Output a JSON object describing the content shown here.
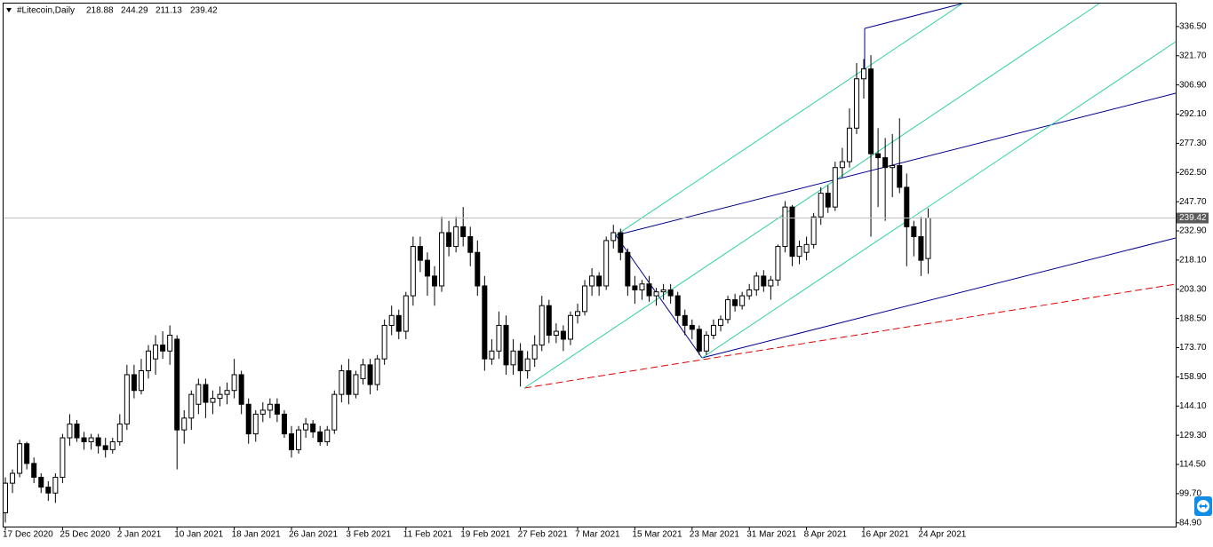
{
  "chart_data": {
    "type": "candlestick",
    "title": "#Litecoin,Daily",
    "categories": [
      "17 Dec 2020",
      null,
      null,
      null,
      null,
      null,
      null,
      null,
      "25 Dec 2020",
      null,
      null,
      null,
      null,
      null,
      null,
      null,
      "2 Jan 2021",
      null,
      null,
      null,
      null,
      null,
      null,
      null,
      "10 Jan 2021",
      null,
      null,
      null,
      null,
      null,
      null,
      null,
      "18 Jan 2021",
      null,
      null,
      null,
      null,
      null,
      null,
      null,
      "26 Jan 2021",
      null,
      null,
      null,
      null,
      null,
      null,
      null,
      "3 Feb 2021",
      null,
      null,
      null,
      null,
      null,
      null,
      null,
      "11 Feb 2021",
      null,
      null,
      null,
      null,
      null,
      null,
      null,
      "19 Feb 2021",
      null,
      null,
      null,
      null,
      null,
      null,
      null,
      "27 Feb 2021",
      null,
      null,
      null,
      null,
      null,
      null,
      null,
      "7 Mar 2021",
      null,
      null,
      null,
      null,
      null,
      null,
      null,
      "15 Mar 2021",
      null,
      null,
      null,
      null,
      null,
      null,
      null,
      "23 Mar 2021",
      null,
      null,
      null,
      null,
      null,
      null,
      null,
      "31 Mar 2021",
      null,
      null,
      null,
      null,
      null,
      null,
      null,
      "8 Apr 2021",
      null,
      null,
      null,
      null,
      null,
      null,
      null,
      "16 Apr 2021",
      null,
      null,
      null,
      null,
      null,
      null,
      null,
      "24 Apr 2021",
      null
    ],
    "ohlc": [
      [
        90,
        108,
        85,
        105
      ],
      [
        105,
        112,
        100,
        110
      ],
      [
        110,
        127,
        108,
        125
      ],
      [
        125,
        126,
        112,
        115
      ],
      [
        115,
        118,
        105,
        108
      ],
      [
        108,
        110,
        100,
        103
      ],
      [
        103,
        106,
        96,
        100
      ],
      [
        100,
        110,
        95,
        108
      ],
      [
        108,
        130,
        105,
        128
      ],
      [
        128,
        140,
        124,
        135
      ],
      [
        135,
        137,
        126,
        128
      ],
      [
        128,
        131,
        122,
        126
      ],
      [
        126,
        130,
        122,
        128
      ],
      [
        128,
        130,
        120,
        124
      ],
      [
        124,
        128,
        118,
        122
      ],
      [
        122,
        128,
        120,
        126
      ],
      [
        126,
        140,
        124,
        135
      ],
      [
        135,
        165,
        132,
        160
      ],
      [
        160,
        165,
        148,
        152
      ],
      [
        152,
        168,
        150,
        162
      ],
      [
        162,
        175,
        158,
        172
      ],
      [
        168,
        180,
        160,
        175
      ],
      [
        175,
        182,
        168,
        172
      ],
      [
        172,
        185,
        165,
        180
      ],
      [
        178,
        180,
        112,
        132
      ],
      [
        132,
        142,
        125,
        138
      ],
      [
        138,
        152,
        132,
        150
      ],
      [
        145,
        158,
        140,
        155
      ],
      [
        155,
        158,
        138,
        146
      ],
      [
        146,
        152,
        140,
        148
      ],
      [
        148,
        154,
        144,
        150
      ],
      [
        150,
        156,
        145,
        152
      ],
      [
        152,
        168,
        148,
        160
      ],
      [
        160,
        162,
        140,
        145
      ],
      [
        145,
        148,
        125,
        130
      ],
      [
        130,
        142,
        126,
        140
      ],
      [
        140,
        146,
        136,
        142
      ],
      [
        142,
        148,
        138,
        145
      ],
      [
        145,
        148,
        136,
        140
      ],
      [
        140,
        142,
        128,
        130
      ],
      [
        130,
        134,
        118,
        122
      ],
      [
        122,
        134,
        120,
        132
      ],
      [
        132,
        138,
        128,
        135
      ],
      [
        135,
        137,
        128,
        131
      ],
      [
        131,
        134,
        124,
        126
      ],
      [
        126,
        134,
        124,
        132
      ],
      [
        132,
        152,
        130,
        150
      ],
      [
        150,
        165,
        146,
        162
      ],
      [
        162,
        168,
        145,
        150
      ],
      [
        150,
        162,
        148,
        160
      ],
      [
        158,
        168,
        155,
        165
      ],
      [
        165,
        168,
        150,
        155
      ],
      [
        155,
        170,
        152,
        168
      ],
      [
        168,
        188,
        165,
        185
      ],
      [
        185,
        195,
        180,
        190
      ],
      [
        190,
        193,
        178,
        182
      ],
      [
        182,
        202,
        178,
        200
      ],
      [
        200,
        230,
        195,
        225
      ],
      [
        225,
        230,
        212,
        218
      ],
      [
        218,
        222,
        200,
        210
      ],
      [
        210,
        215,
        195,
        205
      ],
      [
        205,
        240,
        202,
        232
      ],
      [
        232,
        238,
        220,
        225
      ],
      [
        225,
        240,
        222,
        235
      ],
      [
        235,
        245,
        225,
        230
      ],
      [
        230,
        235,
        215,
        222
      ],
      [
        222,
        228,
        200,
        205
      ],
      [
        205,
        210,
        162,
        168
      ],
      [
        168,
        178,
        165,
        172
      ],
      [
        172,
        192,
        168,
        185
      ],
      [
        185,
        190,
        160,
        165
      ],
      [
        165,
        178,
        160,
        172
      ],
      [
        172,
        176,
        154,
        162
      ],
      [
        162,
        172,
        158,
        168
      ],
      [
        168,
        180,
        164,
        175
      ],
      [
        175,
        200,
        172,
        195
      ],
      [
        195,
        198,
        176,
        180
      ],
      [
        180,
        186,
        176,
        182
      ],
      [
        182,
        185,
        172,
        178
      ],
      [
        178,
        192,
        175,
        190
      ],
      [
        190,
        196,
        186,
        192
      ],
      [
        192,
        208,
        190,
        205
      ],
      [
        205,
        214,
        200,
        210
      ],
      [
        210,
        212,
        200,
        205
      ],
      [
        205,
        230,
        203,
        228
      ],
      [
        228,
        236,
        224,
        232
      ],
      [
        232,
        234,
        218,
        222
      ],
      [
        222,
        224,
        200,
        205
      ],
      [
        205,
        210,
        196,
        203
      ],
      [
        203,
        208,
        198,
        206
      ],
      [
        206,
        210,
        197,
        200
      ],
      [
        200,
        204,
        195,
        202
      ],
      [
        202,
        206,
        198,
        203
      ],
      [
        203,
        206,
        196,
        200
      ],
      [
        200,
        202,
        186,
        190
      ],
      [
        190,
        193,
        180,
        185
      ],
      [
        185,
        188,
        178,
        183
      ],
      [
        183,
        185,
        170,
        172
      ],
      [
        172,
        182,
        170,
        180
      ],
      [
        180,
        188,
        178,
        185
      ],
      [
        185,
        190,
        182,
        188
      ],
      [
        188,
        200,
        186,
        198
      ],
      [
        198,
        201,
        192,
        195
      ],
      [
        195,
        202,
        193,
        200
      ],
      [
        200,
        206,
        198,
        203
      ],
      [
        203,
        212,
        200,
        210
      ],
      [
        210,
        213,
        202,
        205
      ],
      [
        205,
        210,
        198,
        208
      ],
      [
        208,
        226,
        205,
        225
      ],
      [
        225,
        248,
        222,
        245
      ],
      [
        245,
        246,
        215,
        220
      ],
      [
        220,
        228,
        216,
        225
      ],
      [
        222,
        230,
        218,
        226
      ],
      [
        226,
        242,
        224,
        240
      ],
      [
        240,
        255,
        236,
        252
      ],
      [
        252,
        256,
        242,
        245
      ],
      [
        245,
        268,
        243,
        265
      ],
      [
        265,
        275,
        260,
        268
      ],
      [
        268,
        295,
        265,
        285
      ],
      [
        285,
        318,
        282,
        310
      ],
      [
        310,
        320,
        300,
        315
      ],
      [
        315,
        322,
        230,
        272
      ],
      [
        272,
        285,
        245,
        270
      ],
      [
        270,
        280,
        238,
        265
      ],
      [
        265,
        282,
        250,
        266
      ],
      [
        266,
        290,
        252,
        255
      ],
      [
        255,
        262,
        215,
        235
      ],
      [
        235,
        238,
        220,
        230
      ],
      [
        230,
        240,
        210,
        218
      ],
      [
        218.88,
        244.29,
        211.13,
        239.42
      ]
    ],
    "ylim": [
      83.0,
      349.5
    ],
    "yticks": [
      {
        "value": 336.5,
        "label": "336.50"
      },
      {
        "value": 321.7,
        "label": "321.70"
      },
      {
        "value": 306.9,
        "label": "306.90"
      },
      {
        "value": 292.1,
        "label": "292.10"
      },
      {
        "value": 277.3,
        "label": "277.30"
      },
      {
        "value": 262.5,
        "label": "262.50"
      },
      {
        "value": 247.7,
        "label": "247.70"
      },
      {
        "value": 232.9,
        "label": "232.90"
      },
      {
        "value": 218.1,
        "label": "218.10"
      },
      {
        "value": 203.3,
        "label": "203.30"
      },
      {
        "value": 188.5,
        "label": "188.50"
      },
      {
        "value": 173.7,
        "label": "173.70"
      },
      {
        "value": 158.9,
        "label": "158.90"
      },
      {
        "value": 144.1,
        "label": "144.10"
      },
      {
        "value": 129.3,
        "label": "129.30"
      },
      {
        "value": 114.5,
        "label": "114.50"
      },
      {
        "value": 99.7,
        "label": "99.70"
      },
      {
        "value": 84.9,
        "label": "84.90"
      }
    ],
    "up_color": "#ffffff",
    "down_color": "#000000"
  }
}
